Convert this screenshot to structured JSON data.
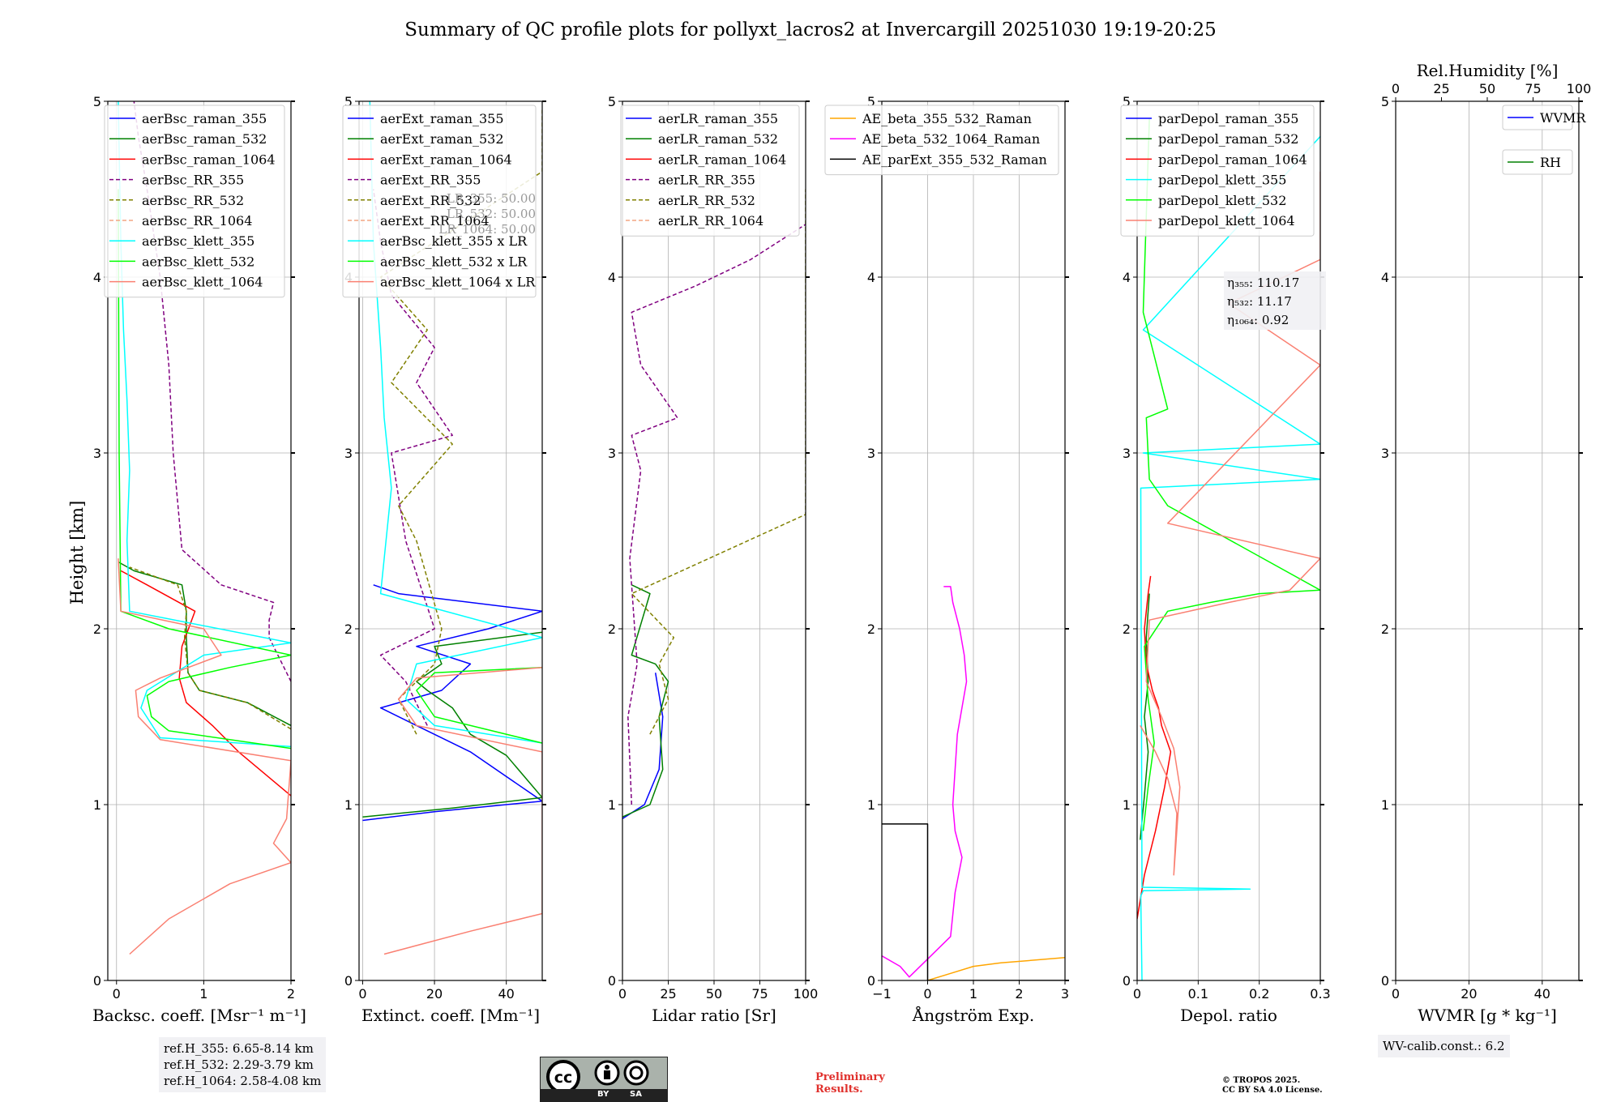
{
  "figure": {
    "title": "Summary of QC profile plots for pollyxt_lacros2 at Invercargill 20251030 19:19-20:25",
    "ylabel": "Height [km]",
    "ref_heights": [
      "ref.H_355: 6.65-8.14 km",
      "ref.H_532: 2.29-3.79 km",
      "ref.H_1064: 2.58-4.08 km"
    ],
    "wv_calib": "WV-calib.const.: 6.2",
    "license_badge": [
      "BY",
      "SA"
    ],
    "preliminary": [
      "Preliminary",
      "Results."
    ],
    "copyright": [
      "© TROPOS 2025.",
      "CC BY SA 4.0 License."
    ]
  },
  "chart_data": [
    {
      "type": "line",
      "name": "backscatter",
      "xlabel": "Backsc. coeff. [Msr⁻¹ m⁻¹]",
      "xlim": [
        -0.1,
        2
      ],
      "xticks": [
        0,
        1,
        2
      ],
      "ylim": [
        0,
        5
      ],
      "yticks": [
        0,
        1,
        2,
        3,
        4,
        5
      ],
      "grid": true,
      "legend": "top-right",
      "series": [
        {
          "name": "aerBsc_raman_355",
          "color": "#0000ff",
          "dash": false,
          "x": [],
          "y": []
        },
        {
          "name": "aerBsc_raman_532",
          "color": "#008000",
          "dash": false,
          "x": [
            2.0,
            1.5,
            0.95,
            0.82,
            0.8,
            0.8,
            0.75,
            0.2,
            0.02
          ],
          "y": [
            1.45,
            1.58,
            1.65,
            1.75,
            1.95,
            2.1,
            2.25,
            2.33,
            2.38
          ]
        },
        {
          "name": "aerBsc_raman_1064",
          "color": "#ff0000",
          "dash": false,
          "x": [
            2.0,
            1.4,
            1.1,
            0.8,
            0.72,
            0.75,
            0.9,
            0.35,
            0.05
          ],
          "y": [
            1.05,
            1.3,
            1.45,
            1.58,
            1.72,
            1.9,
            2.1,
            2.25,
            2.33
          ]
        },
        {
          "name": "aerBsc_RR_355",
          "color": "#800080",
          "dash": true,
          "x": [
            2.0,
            1.75,
            1.75,
            1.8,
            1.2,
            0.75,
            0.65,
            0.6,
            0.5,
            0.35,
            0.25,
            0.2
          ],
          "y": [
            1.7,
            1.95,
            2.05,
            2.15,
            2.25,
            2.45,
            3.0,
            3.5,
            4.0,
            4.5,
            4.8,
            5.0
          ]
        },
        {
          "name": "aerBsc_RR_532",
          "color": "#808000",
          "dash": true,
          "x": [
            2.0,
            1.5,
            0.95,
            0.82,
            0.78,
            0.8,
            0.7,
            0.15
          ],
          "y": [
            1.43,
            1.58,
            1.65,
            1.75,
            1.95,
            2.1,
            2.25,
            2.35
          ]
        },
        {
          "name": "aerBsc_RR_1064",
          "color": "#f4a582",
          "dash": true,
          "x": [],
          "y": []
        },
        {
          "name": "aerBsc_klett_355",
          "color": "#00ffff",
          "dash": false,
          "x": [
            2.0,
            0.5,
            0.28,
            0.35,
            1.0,
            2.0,
            0.15,
            0.12,
            0.15,
            0.12,
            0.08,
            0.05,
            0.02
          ],
          "y": [
            1.33,
            1.38,
            1.55,
            1.65,
            1.85,
            1.92,
            2.1,
            2.5,
            2.9,
            3.3,
            3.7,
            4.2,
            5.0
          ]
        },
        {
          "name": "aerBsc_klett_532",
          "color": "#00ff00",
          "dash": false,
          "x": [
            2.0,
            0.6,
            0.4,
            0.35,
            0.6,
            1.3,
            2.0,
            0.6,
            0.05,
            0.03,
            0.02
          ],
          "y": [
            1.32,
            1.42,
            1.5,
            1.62,
            1.7,
            1.78,
            1.85,
            2.0,
            2.1,
            3.0,
            4.5
          ]
        },
        {
          "name": "aerBsc_klett_1064",
          "color": "#fa8072",
          "dash": false,
          "x": [
            0.15,
            0.6,
            1.3,
            2.0,
            1.8,
            1.95,
            2.0,
            0.5,
            0.25,
            0.22,
            0.5,
            1.2,
            1.0,
            0.05,
            0.02
          ],
          "y": [
            0.15,
            0.35,
            0.55,
            0.67,
            0.78,
            0.92,
            1.25,
            1.37,
            1.5,
            1.65,
            1.72,
            1.85,
            2.0,
            2.1,
            2.4
          ]
        }
      ],
      "annotations": []
    },
    {
      "type": "line",
      "name": "extinction",
      "xlabel": "Extinct. coeff. [Mm⁻¹]",
      "xlim": [
        -1,
        50
      ],
      "xticks": [
        0,
        20,
        40
      ],
      "ylim": [
        0,
        5
      ],
      "yticks": [
        0,
        1,
        2,
        3,
        4,
        5
      ],
      "grid": true,
      "legend": "top-right",
      "series": [
        {
          "name": "aerExt_raman_355",
          "color": "#0000ff",
          "dash": false,
          "x": [
            0,
            20,
            50,
            30,
            15,
            5,
            22,
            30,
            15,
            35,
            50,
            10,
            3
          ],
          "y": [
            0.91,
            0.96,
            1.02,
            1.3,
            1.45,
            1.55,
            1.65,
            1.8,
            1.9,
            2.0,
            2.1,
            2.2,
            2.25
          ]
        },
        {
          "name": "aerExt_raman_532",
          "color": "#008000",
          "dash": false,
          "x": [
            0,
            25,
            50,
            40,
            30,
            25,
            18,
            15,
            22,
            20,
            50
          ],
          "y": [
            0.93,
            0.98,
            1.04,
            1.28,
            1.4,
            1.55,
            1.65,
            1.7,
            1.8,
            1.9,
            1.98
          ]
        },
        {
          "name": "aerExt_raman_1064",
          "color": "#ff0000",
          "dash": false,
          "x": [],
          "y": []
        },
        {
          "name": "aerExt_RR_355",
          "color": "#800080",
          "dash": true,
          "x": [
            18,
            12,
            5,
            20,
            12,
            8,
            25,
            15,
            20,
            8,
            5,
            3
          ],
          "y": [
            1.45,
            1.7,
            1.85,
            2.0,
            2.5,
            3.0,
            3.1,
            3.4,
            3.6,
            3.9,
            4.2,
            4.5
          ]
        },
        {
          "name": "aerExt_RR_532",
          "color": "#808000",
          "dash": true,
          "x": [
            15,
            10,
            20,
            22,
            15,
            10,
            25,
            8,
            18,
            5,
            50,
            50
          ],
          "y": [
            1.4,
            1.6,
            1.8,
            2.0,
            2.5,
            2.7,
            3.05,
            3.4,
            3.7,
            4.0,
            4.6,
            4.95
          ]
        },
        {
          "name": "aerExt_RR_1064",
          "color": "#f4a582",
          "dash": true,
          "x": [],
          "y": []
        },
        {
          "name": "aerBsc_klett_355 x LR",
          "color": "#00ffff",
          "dash": false,
          "x": [
            50,
            20,
            12,
            15,
            50,
            5,
            8,
            6,
            5,
            3,
            2
          ],
          "y": [
            1.35,
            1.45,
            1.6,
            1.8,
            1.95,
            2.2,
            2.8,
            3.2,
            3.6,
            4.2,
            5.0
          ]
        },
        {
          "name": "aerBsc_klett_532 x LR",
          "color": "#00ff00",
          "dash": false,
          "x": [
            50,
            20,
            15,
            20,
            50
          ],
          "y": [
            1.35,
            1.5,
            1.65,
            1.75,
            1.78
          ]
        },
        {
          "name": "aerBsc_klett_1064 x LR",
          "color": "#fa8072",
          "dash": false,
          "x": [
            6,
            30,
            50,
            50,
            15,
            10,
            15,
            50
          ],
          "y": [
            0.15,
            0.28,
            0.38,
            1.3,
            1.45,
            1.6,
            1.72,
            1.78
          ]
        }
      ],
      "annotations": [
        "LR_355: 50.00",
        "LR_532: 50.00",
        "LR_1064: 50.00"
      ]
    },
    {
      "type": "line",
      "name": "lidar_ratio",
      "xlabel": "Lidar ratio [Sr]",
      "xlim": [
        0,
        100
      ],
      "xticks": [
        0,
        25,
        50,
        75,
        100
      ],
      "ylim": [
        0,
        5
      ],
      "yticks": [
        0,
        1,
        2,
        3,
        4,
        5
      ],
      "grid": true,
      "legend": "top-right",
      "series": [
        {
          "name": "aerLR_raman_355",
          "color": "#0000ff",
          "dash": false,
          "x": [
            0,
            12,
            20,
            22,
            18
          ],
          "y": [
            0.92,
            1.0,
            1.2,
            1.5,
            1.75
          ]
        },
        {
          "name": "aerLR_raman_532",
          "color": "#008000",
          "dash": false,
          "x": [
            0,
            15,
            22,
            20,
            25,
            18,
            5,
            15,
            5
          ],
          "y": [
            0.93,
            1.0,
            1.2,
            1.5,
            1.7,
            1.8,
            1.85,
            2.2,
            2.25
          ]
        },
        {
          "name": "aerLR_raman_1064",
          "color": "#ff0000",
          "dash": false,
          "x": [],
          "y": []
        },
        {
          "name": "aerLR_RR_355",
          "color": "#800080",
          "dash": true,
          "x": [
            5,
            3,
            8,
            4,
            10,
            5,
            30,
            10,
            5,
            40,
            70,
            100
          ],
          "y": [
            1.0,
            1.5,
            1.8,
            2.4,
            2.9,
            3.1,
            3.2,
            3.5,
            3.8,
            3.95,
            4.1,
            4.3
          ]
        },
        {
          "name": "aerLR_RR_532",
          "color": "#808000",
          "dash": true,
          "x": [
            15,
            25,
            20,
            28,
            5,
            100,
            100,
            100,
            100,
            100
          ],
          "y": [
            1.4,
            1.6,
            1.8,
            1.95,
            2.2,
            2.65,
            3.08,
            3.6,
            3.85,
            4.5
          ]
        },
        {
          "name": "aerLR_RR_1064",
          "color": "#f4a582",
          "dash": true,
          "x": [],
          "y": []
        }
      ],
      "annotations": []
    },
    {
      "type": "line",
      "name": "angstrom",
      "xlabel": "Ångström Exp.",
      "xlim": [
        -1,
        3
      ],
      "xticks": [
        -1,
        0,
        1,
        2,
        3
      ],
      "ylim": [
        0,
        5
      ],
      "yticks": [
        0,
        1,
        2,
        3,
        4,
        5
      ],
      "grid": true,
      "legend": "top-right",
      "series": [
        {
          "name": "AE_beta_355_532_Raman",
          "color": "#ffa500",
          "dash": false,
          "x": [
            0,
            0.5,
            1.0,
            1.6,
            3.0
          ],
          "y": [
            0.0,
            0.04,
            0.08,
            0.1,
            0.13
          ]
        },
        {
          "name": "AE_beta_532_1064_Raman",
          "color": "#ff00ff",
          "dash": false,
          "x": [
            -1,
            -0.6,
            -0.4,
            0.5,
            0.6,
            0.75,
            0.6,
            0.55,
            0.65,
            0.85,
            0.8,
            0.7,
            0.55,
            0.5,
            0.35
          ],
          "y": [
            0.14,
            0.08,
            0.02,
            0.25,
            0.5,
            0.7,
            0.85,
            1.0,
            1.4,
            1.7,
            1.85,
            2.0,
            2.15,
            2.24,
            2.24
          ]
        },
        {
          "name": "AE_parExt_355_532_Raman",
          "color": "#000000",
          "dash": false,
          "x": [
            -1,
            0,
            0,
            3
          ],
          "y": [
            0.89,
            0.89,
            0.0,
            0.0
          ]
        }
      ],
      "annotations": []
    },
    {
      "type": "line",
      "name": "depol",
      "xlabel": "Depol. ratio",
      "xlim": [
        0,
        0.3
      ],
      "xticks": [
        0,
        0.1,
        0.2,
        0.3
      ],
      "ylim": [
        0,
        5
      ],
      "yticks": [
        0,
        1,
        2,
        3,
        4,
        5
      ],
      "grid": true,
      "legend": "top-right",
      "series": [
        {
          "name": "parDepol_raman_355",
          "color": "#0000ff",
          "dash": false,
          "x": [],
          "y": []
        },
        {
          "name": "parDepol_raman_532",
          "color": "#008000",
          "dash": false,
          "x": [
            0.005,
            0.012,
            0.018,
            0.012,
            0.018,
            0.015,
            0.02
          ],
          "y": [
            0.8,
            1.05,
            1.3,
            1.5,
            1.7,
            1.95,
            2.2
          ]
        },
        {
          "name": "parDepol_raman_1064",
          "color": "#ff0000",
          "dash": false,
          "x": [
            0.0,
            0.012,
            0.03,
            0.045,
            0.055,
            0.04,
            0.035,
            0.025,
            0.015,
            0.012,
            0.015,
            0.018,
            0.022
          ],
          "y": [
            0.35,
            0.6,
            0.85,
            1.1,
            1.3,
            1.45,
            1.55,
            1.65,
            1.8,
            2.0,
            2.1,
            2.2,
            2.3
          ]
        },
        {
          "name": "parDepol_klett_355",
          "color": "#00ffff",
          "dash": false,
          "x": [
            0.008,
            0.006,
            0.01,
            0.185,
            0.008,
            0.006,
            0.3,
            0.01,
            0.3,
            0.01,
            0.3
          ],
          "y": [
            0.0,
            0.48,
            0.51,
            0.52,
            0.53,
            2.8,
            2.85,
            3.0,
            3.05,
            3.7,
            4.8
          ]
        },
        {
          "name": "parDepol_klett_532",
          "color": "#00ff00",
          "dash": false,
          "x": [
            0.01,
            0.018,
            0.028,
            0.018,
            0.012,
            0.05,
            0.12,
            0.2,
            0.3,
            0.05,
            0.02,
            0.015,
            0.05,
            0.01,
            0.02
          ],
          "y": [
            0.85,
            1.1,
            1.35,
            1.6,
            1.9,
            2.1,
            2.15,
            2.2,
            2.22,
            2.7,
            2.85,
            3.2,
            3.25,
            3.8,
            4.9
          ]
        },
        {
          "name": "parDepol_klett_1064",
          "color": "#fa8072",
          "dash": false,
          "x": [
            0.005,
            0.03,
            0.05,
            0.065,
            0.06,
            0.07,
            0.06,
            0.04,
            0.015,
            0.02,
            0.15,
            0.25,
            0.3,
            0.05,
            0.3,
            0.15,
            0.3,
            0.3
          ],
          "y": [
            1.45,
            1.3,
            1.15,
            0.95,
            0.6,
            1.1,
            1.32,
            1.5,
            1.7,
            2.05,
            2.15,
            2.22,
            2.4,
            2.6,
            3.5,
            3.85,
            4.1,
            4.6
          ]
        }
      ],
      "annotations": [
        "η₃₅₅: 110.17",
        "η₅₃₂: 11.17",
        "η₁₀₆₄: 0.92"
      ]
    },
    {
      "type": "line",
      "name": "wvmr",
      "xlabel": "WVMR [g * kg⁻¹]",
      "xlim": [
        0,
        50
      ],
      "xticks": [
        0,
        20,
        40
      ],
      "x2label": "Rel.Humidity [%]",
      "x2lim": [
        0,
        100
      ],
      "x2ticks": [
        0,
        25,
        50,
        75,
        100
      ],
      "ylim": [
        0,
        5
      ],
      "yticks": [
        0,
        1,
        2,
        3,
        4,
        5
      ],
      "grid": true,
      "legend": "top-right",
      "series": [
        {
          "name": "WVMR",
          "color": "#0000ff",
          "dash": false,
          "x": [],
          "y": []
        },
        {
          "name": "RH",
          "color": "#008000",
          "dash": false,
          "x": [],
          "y": []
        }
      ],
      "annotations": []
    }
  ]
}
